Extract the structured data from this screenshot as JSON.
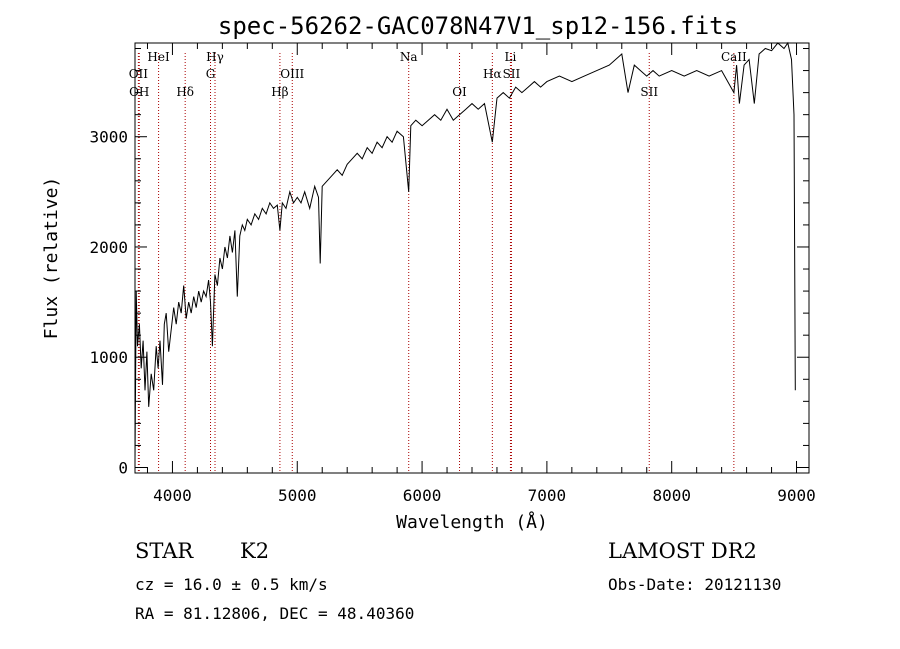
{
  "chart_data": {
    "type": "line",
    "title": "spec-56262-GAC078N47V1_sp12-156.fits",
    "xlabel": "Wavelength (Å)",
    "ylabel": "Flux (relative)",
    "xlim": [
      3700,
      9100
    ],
    "ylim": [
      -50,
      3850
    ],
    "x_ticks": [
      "4000",
      "5000",
      "6000",
      "7000",
      "8000",
      "9000"
    ],
    "x_tick_values": [
      4000,
      5000,
      6000,
      7000,
      8000,
      9000
    ],
    "y_ticks": [
      "0",
      "1000",
      "2000",
      "3000"
    ],
    "y_tick_values": [
      0,
      1000,
      2000,
      3000
    ],
    "grid": false,
    "series": [
      {
        "points": [
          [
            3700,
            50
          ],
          [
            3710,
            1600
          ],
          [
            3720,
            1100
          ],
          [
            3735,
            1300
          ],
          [
            3750,
            900
          ],
          [
            3765,
            1150
          ],
          [
            3780,
            700
          ],
          [
            3795,
            1050
          ],
          [
            3810,
            550
          ],
          [
            3830,
            850
          ],
          [
            3850,
            700
          ],
          [
            3870,
            1100
          ],
          [
            3885,
            900
          ],
          [
            3900,
            1150
          ],
          [
            3920,
            750
          ],
          [
            3935,
            1300
          ],
          [
            3950,
            1400
          ],
          [
            3970,
            1050
          ],
          [
            3990,
            1250
          ],
          [
            4010,
            1450
          ],
          [
            4030,
            1300
          ],
          [
            4050,
            1500
          ],
          [
            4070,
            1400
          ],
          [
            4090,
            1650
          ],
          [
            4110,
            1350
          ],
          [
            4130,
            1500
          ],
          [
            4150,
            1400
          ],
          [
            4170,
            1550
          ],
          [
            4190,
            1450
          ],
          [
            4210,
            1600
          ],
          [
            4230,
            1500
          ],
          [
            4250,
            1600
          ],
          [
            4270,
            1550
          ],
          [
            4290,
            1700
          ],
          [
            4305,
            1500
          ],
          [
            4320,
            1100
          ],
          [
            4340,
            1750
          ],
          [
            4360,
            1650
          ],
          [
            4380,
            1900
          ],
          [
            4400,
            1800
          ],
          [
            4420,
            2000
          ],
          [
            4440,
            1900
          ],
          [
            4460,
            2100
          ],
          [
            4480,
            1950
          ],
          [
            4500,
            2150
          ],
          [
            4520,
            1550
          ],
          [
            4540,
            2100
          ],
          [
            4560,
            2200
          ],
          [
            4580,
            2150
          ],
          [
            4600,
            2250
          ],
          [
            4630,
            2200
          ],
          [
            4660,
            2300
          ],
          [
            4690,
            2250
          ],
          [
            4720,
            2350
          ],
          [
            4750,
            2300
          ],
          [
            4780,
            2400
          ],
          [
            4810,
            2350
          ],
          [
            4840,
            2380
          ],
          [
            4861,
            2150
          ],
          [
            4880,
            2400
          ],
          [
            4910,
            2350
          ],
          [
            4940,
            2500
          ],
          [
            4970,
            2400
          ],
          [
            5000,
            2450
          ],
          [
            5030,
            2400
          ],
          [
            5060,
            2500
          ],
          [
            5100,
            2350
          ],
          [
            5140,
            2550
          ],
          [
            5170,
            2450
          ],
          [
            5184,
            1850
          ],
          [
            5200,
            2550
          ],
          [
            5240,
            2600
          ],
          [
            5280,
            2650
          ],
          [
            5320,
            2700
          ],
          [
            5360,
            2650
          ],
          [
            5400,
            2750
          ],
          [
            5440,
            2800
          ],
          [
            5480,
            2850
          ],
          [
            5520,
            2800
          ],
          [
            5560,
            2900
          ],
          [
            5600,
            2850
          ],
          [
            5640,
            2950
          ],
          [
            5680,
            2900
          ],
          [
            5720,
            3000
          ],
          [
            5760,
            2950
          ],
          [
            5800,
            3050
          ],
          [
            5850,
            3000
          ],
          [
            5893,
            2500
          ],
          [
            5910,
            3100
          ],
          [
            5950,
            3150
          ],
          [
            6000,
            3100
          ],
          [
            6050,
            3150
          ],
          [
            6100,
            3200
          ],
          [
            6150,
            3150
          ],
          [
            6200,
            3250
          ],
          [
            6250,
            3150
          ],
          [
            6300,
            3200
          ],
          [
            6350,
            3250
          ],
          [
            6400,
            3300
          ],
          [
            6450,
            3250
          ],
          [
            6500,
            3300
          ],
          [
            6563,
            2950
          ],
          [
            6600,
            3350
          ],
          [
            6650,
            3400
          ],
          [
            6700,
            3350
          ],
          [
            6750,
            3450
          ],
          [
            6800,
            3400
          ],
          [
            6850,
            3450
          ],
          [
            6900,
            3500
          ],
          [
            6950,
            3450
          ],
          [
            7000,
            3500
          ],
          [
            7100,
            3550
          ],
          [
            7200,
            3500
          ],
          [
            7300,
            3550
          ],
          [
            7400,
            3600
          ],
          [
            7500,
            3650
          ],
          [
            7600,
            3750
          ],
          [
            7650,
            3400
          ],
          [
            7700,
            3650
          ],
          [
            7750,
            3600
          ],
          [
            7800,
            3550
          ],
          [
            7850,
            3600
          ],
          [
            7900,
            3550
          ],
          [
            8000,
            3600
          ],
          [
            8100,
            3550
          ],
          [
            8200,
            3600
          ],
          [
            8300,
            3550
          ],
          [
            8400,
            3600
          ],
          [
            8498,
            3400
          ],
          [
            8520,
            3650
          ],
          [
            8542,
            3300
          ],
          [
            8580,
            3650
          ],
          [
            8620,
            3700
          ],
          [
            8662,
            3300
          ],
          [
            8700,
            3750
          ],
          [
            8750,
            3800
          ],
          [
            8800,
            3780
          ],
          [
            8850,
            3850
          ],
          [
            8900,
            3800
          ],
          [
            8930,
            3850
          ],
          [
            8960,
            3700
          ],
          [
            8980,
            3200
          ],
          [
            8990,
            700
          ]
        ]
      }
    ],
    "lines": [
      {
        "label": "OII",
        "x": 3727,
        "row": 2
      },
      {
        "label": "OH",
        "x": 3734,
        "row": 3
      },
      {
        "label": "HeI",
        "x": 3889,
        "row": 1
      },
      {
        "label": "Hδ",
        "x": 4102,
        "row": 3
      },
      {
        "label": "Hγ",
        "x": 4341,
        "row": 1
      },
      {
        "label": "G",
        "x": 4305,
        "row": 2
      },
      {
        "label": "OIII",
        "x": 4960,
        "row": 2
      },
      {
        "label": "Hβ",
        "x": 4861,
        "row": 3
      },
      {
        "label": "Na",
        "x": 5893,
        "row": 1
      },
      {
        "label": "OI",
        "x": 6300,
        "row": 3
      },
      {
        "label": "Li",
        "x": 6708,
        "row": 1
      },
      {
        "label": "Hα",
        "x": 6563,
        "row": 2
      },
      {
        "label": "SII",
        "x": 6716,
        "row": 2
      },
      {
        "label": "SII",
        "x": 7820,
        "row": 3
      },
      {
        "label": "CaII",
        "x": 8498,
        "row": 1
      }
    ]
  },
  "info": {
    "object_class": "STAR",
    "subclass": "K2",
    "survey": "LAMOST DR2",
    "redshift": "cz = 16.0 ± 0.5 km/s",
    "obs_date": "Obs-Date: 20121130",
    "coords": "RA =  81.12806, DEC =  48.40360"
  },
  "colors": {
    "spectrum": "#000000",
    "line_markers": "#aa0000",
    "axes": "#000000"
  }
}
